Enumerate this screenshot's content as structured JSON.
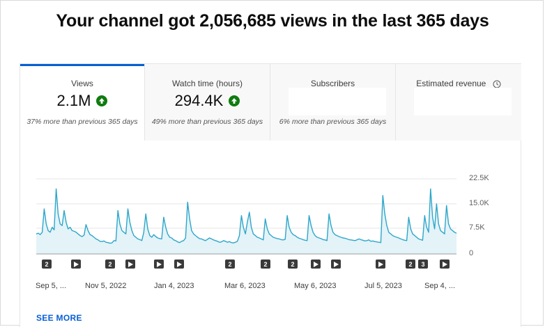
{
  "headline": "Your channel got 2,056,685 views in the last 365 days",
  "tabs": [
    {
      "label": "Views",
      "value": "2.1M",
      "note": "37% more than previous 365 days",
      "trend": "up"
    },
    {
      "label": "Watch time (hours)",
      "value": "294.4K",
      "note": "49% more than previous 365 days",
      "trend": "up"
    },
    {
      "label": "Subscribers",
      "value": "",
      "note": "6% more than previous 365 days"
    },
    {
      "label": "Estimated revenue",
      "value": "",
      "note": "",
      "icon": "clock-icon"
    }
  ],
  "colors": {
    "accent": "#065fd4",
    "line": "#2ea6c9",
    "fill": "#e3f3f8",
    "up": "#0f7b0f"
  },
  "chart_data": {
    "type": "area",
    "ylim": [
      0,
      22500
    ],
    "y_ticks": [
      "22.5K",
      "15.0K",
      "7.5K",
      "0"
    ],
    "x_ticks": [
      "Sep 5, ...",
      "Nov 5, 2022",
      "Jan 4, 2023",
      "Mar 6, 2023",
      "May 6, 2023",
      "Jul 5, 2023",
      "Sep 4, ..."
    ],
    "series": [
      {
        "values": [
          6000,
          6200,
          5800,
          6500,
          13500,
          9000,
          7000,
          6500,
          8000,
          7200,
          19500,
          12000,
          9000,
          8500,
          13000,
          9500,
          7500,
          8000,
          7000,
          6800,
          6500,
          6000,
          5500,
          5200,
          5600,
          8800,
          7000,
          5800,
          5500,
          5000,
          4500,
          4200,
          3800,
          3700,
          3900,
          3500,
          3400,
          3200,
          3300,
          4000,
          3900,
          13000,
          9000,
          7000,
          6500,
          6000,
          13500,
          9500,
          7000,
          5500,
          5000,
          4500,
          4300,
          4000,
          6500,
          12000,
          7500,
          5500,
          5000,
          5800,
          5200,
          4800,
          4600,
          4500,
          11000,
          8000,
          6000,
          5000,
          4800,
          4200,
          4000,
          3600,
          3400,
          3800,
          4000,
          4800,
          15500,
          10500,
          7000,
          6000,
          5500,
          5000,
          4600,
          4500,
          4200,
          4000,
          4400,
          4800,
          4500,
          4200,
          4000,
          3800,
          3500,
          3600,
          4000,
          3800,
          3500,
          3700,
          3400,
          3300,
          3500,
          3800,
          5500,
          11500,
          8000,
          6000,
          9500,
          12500,
          8000,
          6000,
          5500,
          5000,
          4800,
          4500,
          4200,
          10500,
          7500,
          6000,
          5500,
          5000,
          4800,
          4600,
          4500,
          4300,
          4200,
          4400,
          11500,
          8000,
          6500,
          5800,
          5500,
          5000,
          4700,
          4500,
          4300,
          4100,
          4000,
          11500,
          8500,
          6500,
          5500,
          5000,
          4800,
          4600,
          4300,
          4200,
          4000,
          12000,
          8500,
          6500,
          5800,
          5500,
          5200,
          5000,
          4800,
          4700,
          4500,
          4300,
          4200,
          4100,
          4000,
          4200,
          4500,
          4300,
          4100,
          3900,
          4000,
          4200,
          3800,
          3900,
          3700,
          3600,
          3500,
          3400,
          17500,
          12000,
          8500,
          6500,
          6000,
          5500,
          5200,
          5000,
          4800,
          4500,
          4300,
          4100,
          4000,
          11000,
          7500,
          6000,
          5500,
          5000,
          4500,
          4300,
          4100,
          11500,
          8000,
          6500,
          19500,
          11000,
          7500,
          15000,
          9000,
          7000,
          6500,
          6000,
          14500,
          9000,
          7500,
          7000,
          6500,
          6200
        ]
      }
    ],
    "markers": [
      "2",
      "play",
      "2",
      "play",
      "play",
      "play",
      "2",
      "2",
      "2",
      "play",
      "play",
      "play",
      "2",
      "3",
      "play"
    ]
  },
  "see_more_label": "SEE MORE"
}
